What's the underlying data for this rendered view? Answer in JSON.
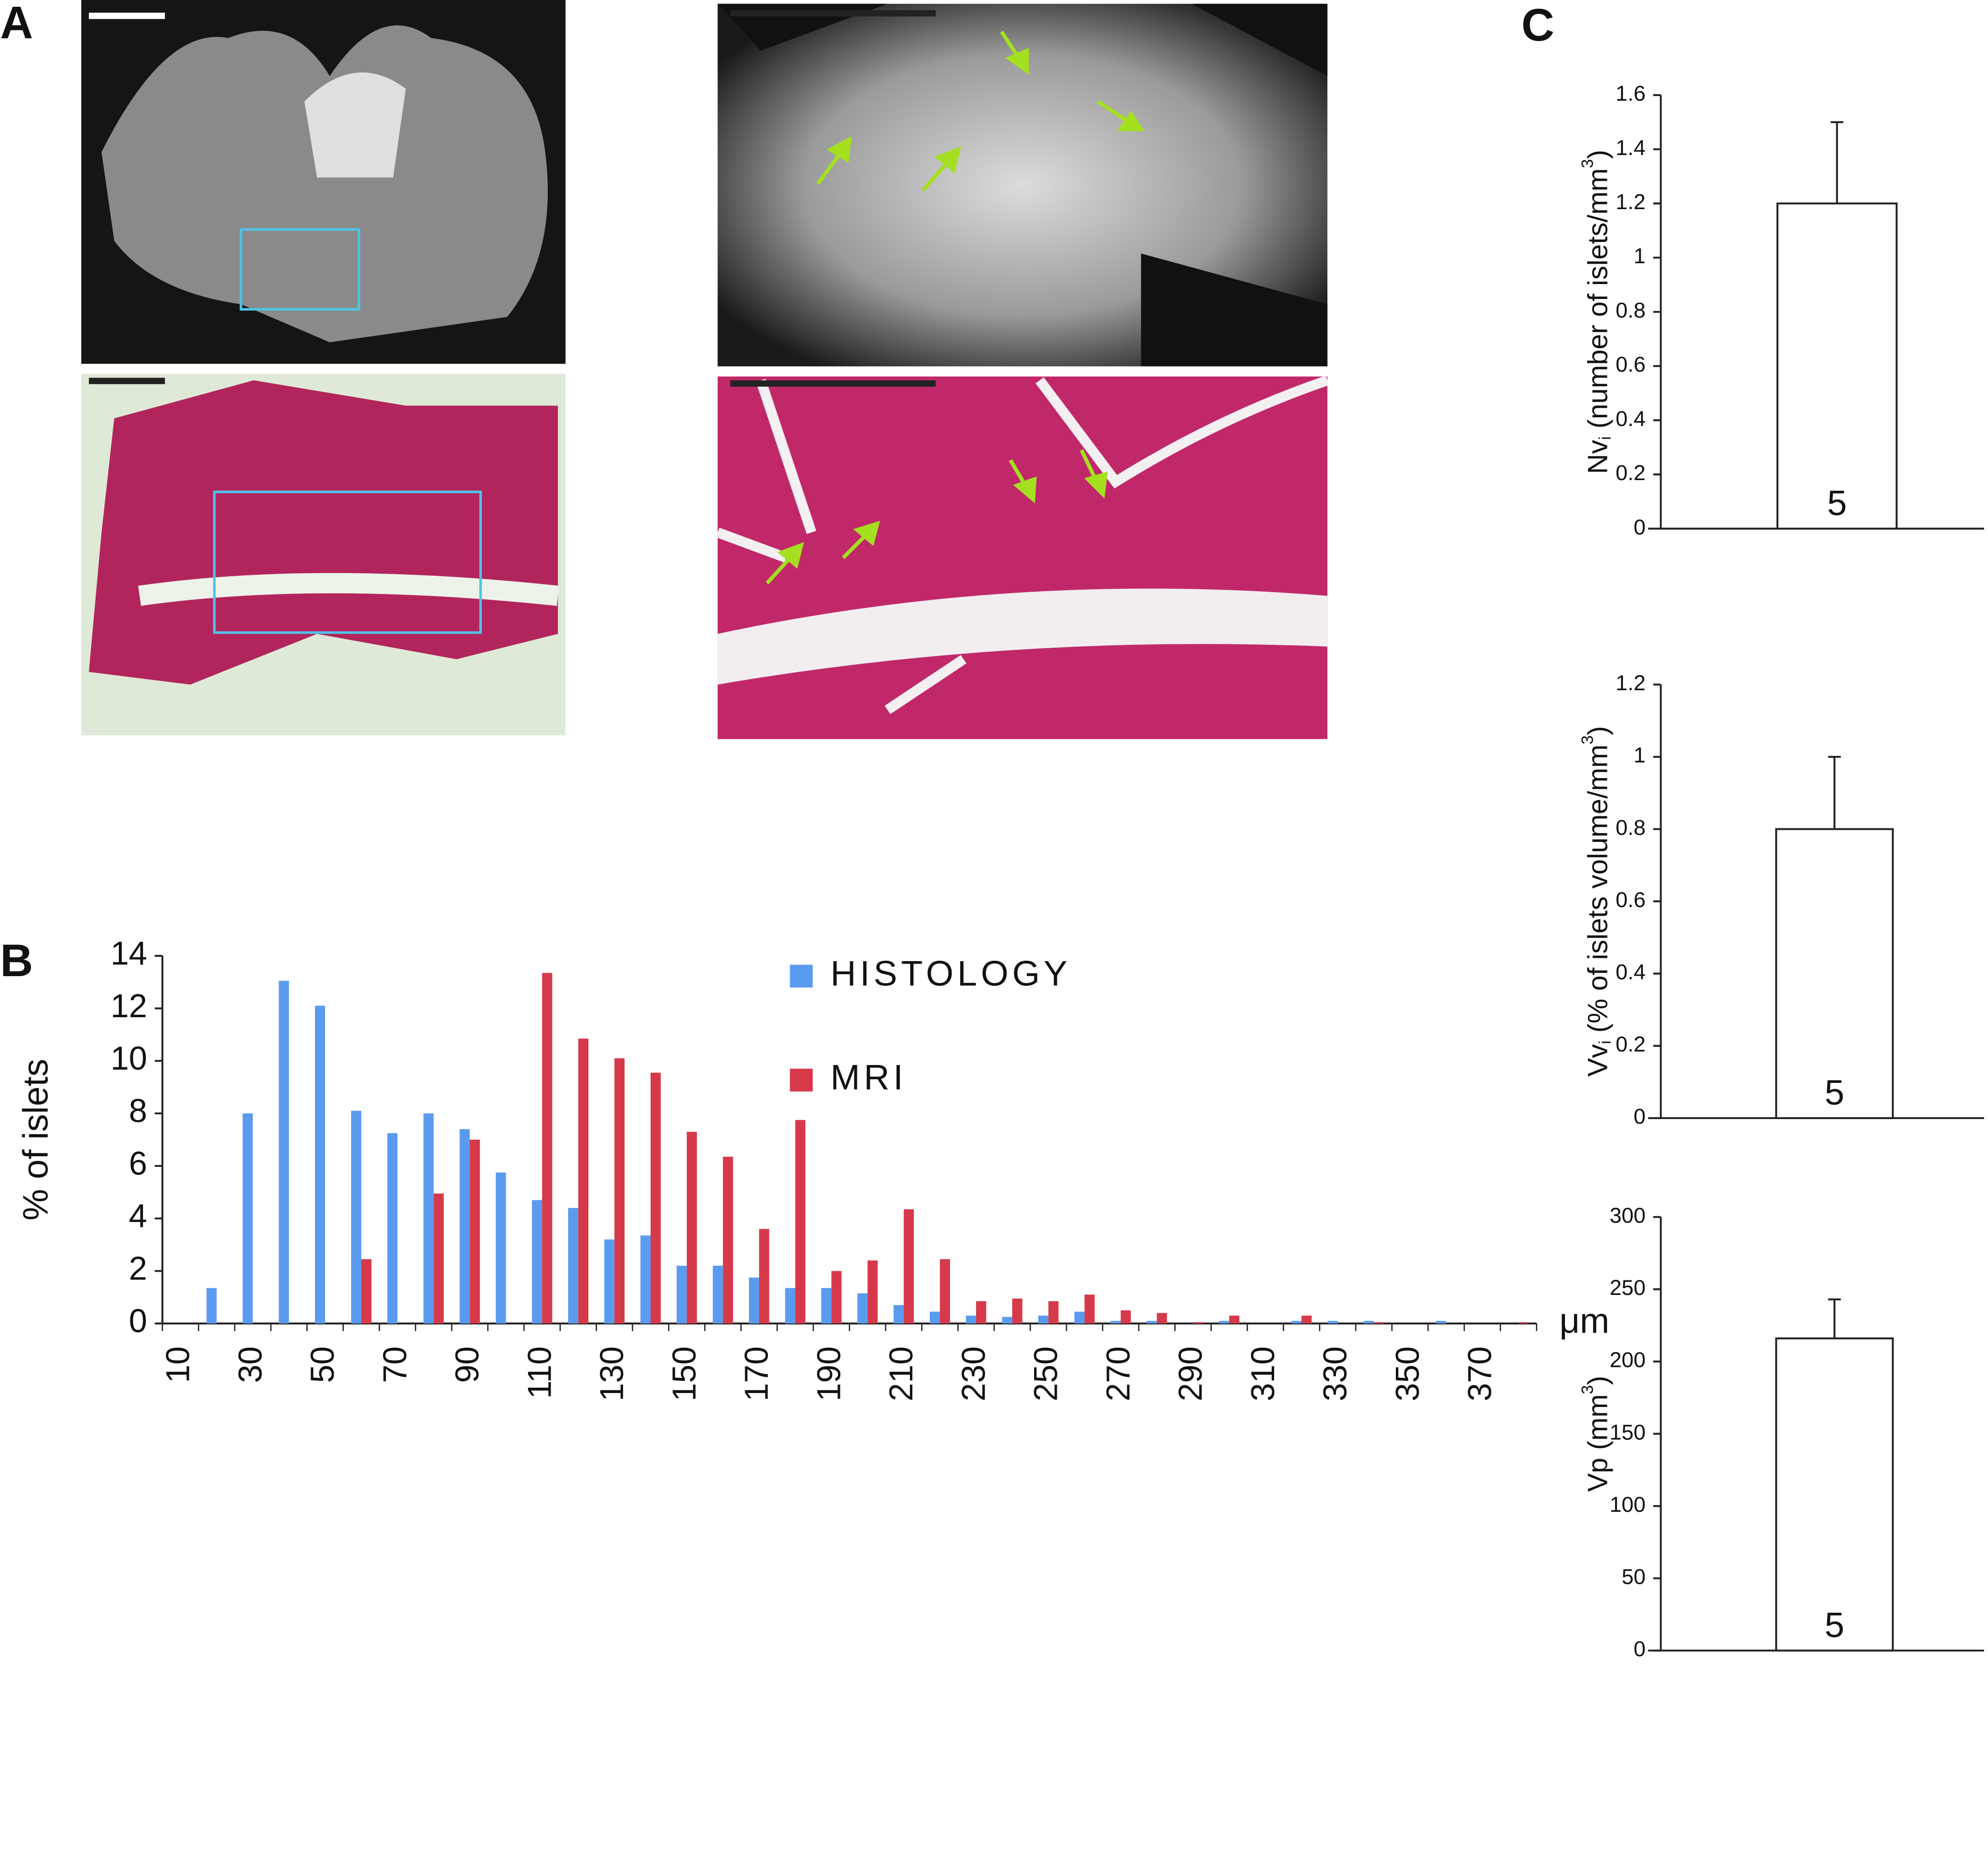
{
  "panel_a": {
    "label": "A"
  },
  "chart_data": [
    {
      "type": "bar",
      "panel_label": "B",
      "ylabel": "% of islets",
      "xunit": "μm",
      "categories": [
        "10",
        null,
        "30",
        null,
        "50",
        null,
        "70",
        null,
        "90",
        null,
        "110",
        null,
        "130",
        null,
        "150",
        null,
        "170",
        null,
        "190",
        null,
        "210",
        null,
        "230",
        null,
        "250",
        null,
        "270",
        null,
        "290",
        null,
        "310",
        null,
        "330",
        null,
        "350",
        null,
        "370",
        null
      ],
      "series": [
        {
          "name": "HISTOLOGY",
          "color": "#5b9bef",
          "values": [
            0,
            1.35,
            8.0,
            13.05,
            12.1,
            8.1,
            7.25,
            8.0,
            7.4,
            5.75,
            4.7,
            4.4,
            3.2,
            3.35,
            2.2,
            2.2,
            1.75,
            1.35,
            1.35,
            1.15,
            0.7,
            0.45,
            0.3,
            0.25,
            0.3,
            0.45,
            0.1,
            0.1,
            0,
            0.1,
            0,
            0.1,
            0.1,
            0.1,
            0,
            0.1,
            0,
            0
          ]
        },
        {
          "name": "MRI",
          "color": "#d63a4a",
          "values": [
            0,
            0,
            0,
            0,
            0,
            2.45,
            0,
            4.95,
            7.0,
            0,
            13.35,
            10.85,
            10.1,
            9.55,
            7.3,
            6.35,
            3.6,
            7.75,
            2.0,
            2.4,
            4.35,
            2.45,
            0.85,
            0.95,
            0.85,
            1.1,
            0.5,
            0.4,
            0.05,
            0.3,
            0,
            0.3,
            0,
            0.05,
            0,
            0,
            0,
            0.05
          ]
        }
      ],
      "ylim": [
        0,
        14
      ],
      "yticks": [
        0,
        2,
        4,
        6,
        8,
        10,
        12,
        14
      ]
    },
    {
      "type": "bar",
      "panel_label": "C",
      "ylabel": {
        "main": "Nv",
        "sub": "i",
        "rest": " (number of islets/mm",
        "sup": "3",
        "end": ")"
      },
      "values": [
        1.2
      ],
      "errors": [
        0.3
      ],
      "bar_labels": [
        "5"
      ],
      "color": "#ffffff",
      "ylim": [
        0,
        1.6
      ],
      "yticks": [
        0,
        0.2,
        0.4,
        0.6,
        0.8,
        1,
        1.2,
        1.4,
        1.6
      ]
    },
    {
      "type": "bar",
      "ylabel": {
        "main": "Vv",
        "sub": "i",
        "rest": " (% of islets volume/mm",
        "sup": "3",
        "end": ")"
      },
      "values": [
        0.8
      ],
      "errors": [
        0.2
      ],
      "bar_labels": [
        "5"
      ],
      "color": "#ffffff",
      "ylim": [
        0,
        1.2
      ],
      "yticks": [
        0,
        0.2,
        0.4,
        0.6,
        0.8,
        1,
        1.2
      ]
    },
    {
      "type": "bar",
      "ylabel": {
        "main": "Vp (mm",
        "sup": "3",
        "end": ")"
      },
      "values": [
        216
      ],
      "errors": [
        27
      ],
      "bar_labels": [
        "5"
      ],
      "color": "#ffffff",
      "ylim": [
        0,
        300
      ],
      "yticks": [
        0,
        50,
        100,
        150,
        200,
        250,
        300
      ]
    }
  ]
}
